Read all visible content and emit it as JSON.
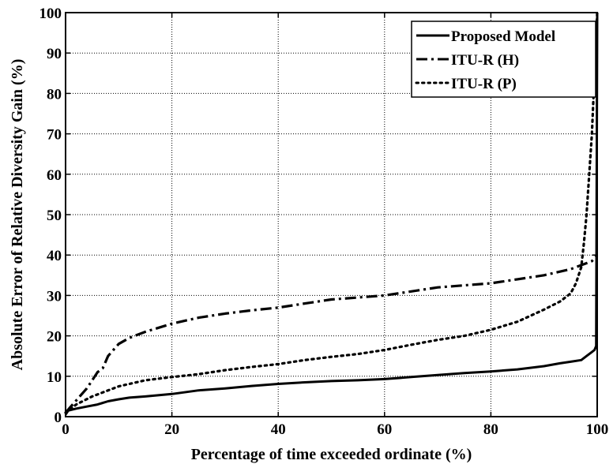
{
  "chart_data": {
    "type": "line",
    "title": "",
    "xlabel": "Percentage of time exceeded ordinate (%)",
    "ylabel": "Absolute Error of Relative Diversity Gain (%)",
    "xlim": [
      0,
      100
    ],
    "ylim": [
      0,
      100
    ],
    "xticks": [
      "0",
      "20",
      "40",
      "60",
      "80",
      "100"
    ],
    "yticks": [
      "0",
      "10",
      "20",
      "30",
      "40",
      "50",
      "60",
      "70",
      "80",
      "90",
      "100"
    ],
    "grid": true,
    "legend_position": "top-right",
    "series": [
      {
        "name": "Proposed Model",
        "style": "solid",
        "x": [
          0,
          0.5,
          2,
          4,
          6,
          8,
          10,
          12,
          15,
          20,
          25,
          30,
          35,
          40,
          45,
          50,
          55,
          60,
          65,
          70,
          75,
          80,
          85,
          90,
          93,
          95,
          97,
          98,
          99,
          99.5,
          99.8,
          100
        ],
        "y": [
          0.5,
          1.5,
          2.0,
          2.5,
          3.0,
          3.8,
          4.3,
          4.7,
          5.0,
          5.6,
          6.5,
          7.0,
          7.6,
          8.1,
          8.5,
          8.8,
          9.0,
          9.3,
          9.8,
          10.3,
          10.8,
          11.2,
          11.7,
          12.5,
          13.2,
          13.6,
          14.0,
          15.0,
          16.0,
          16.5,
          17.5,
          100
        ]
      },
      {
        "name": "ITU-R (H)",
        "style": "dashdot",
        "x": [
          0,
          1,
          2,
          3,
          4,
          5,
          6,
          7,
          8,
          10,
          12,
          15,
          20,
          25,
          30,
          35,
          40,
          45,
          50,
          55,
          60,
          65,
          70,
          75,
          80,
          85,
          90,
          95,
          97,
          99,
          100
        ],
        "y": [
          1.0,
          2.5,
          4.0,
          5.5,
          7.0,
          9.0,
          11.0,
          12.0,
          15.0,
          18.0,
          19.5,
          21.0,
          23.0,
          24.5,
          25.5,
          26.3,
          27.0,
          28.0,
          29.0,
          29.5,
          30.0,
          31.0,
          32.0,
          32.5,
          33.0,
          34.0,
          35.0,
          36.5,
          37.5,
          38.5,
          40.0
        ]
      },
      {
        "name": "ITU-R (P)",
        "style": "dotted",
        "x": [
          0,
          2,
          5,
          10,
          15,
          20,
          25,
          30,
          35,
          40,
          45,
          50,
          55,
          60,
          65,
          70,
          75,
          80,
          85,
          90,
          93,
          95,
          96,
          97,
          97.5,
          98,
          98.5,
          99,
          99.5,
          100
        ],
        "y": [
          1.0,
          3.0,
          5.0,
          7.5,
          9.0,
          9.8,
          10.5,
          11.5,
          12.3,
          13.0,
          14.0,
          14.8,
          15.5,
          16.5,
          17.8,
          19.0,
          20.0,
          21.5,
          23.5,
          26.5,
          28.5,
          30.5,
          33.0,
          37.0,
          43.0,
          50.0,
          60.0,
          70.0,
          85.0,
          100.0
        ]
      }
    ]
  }
}
